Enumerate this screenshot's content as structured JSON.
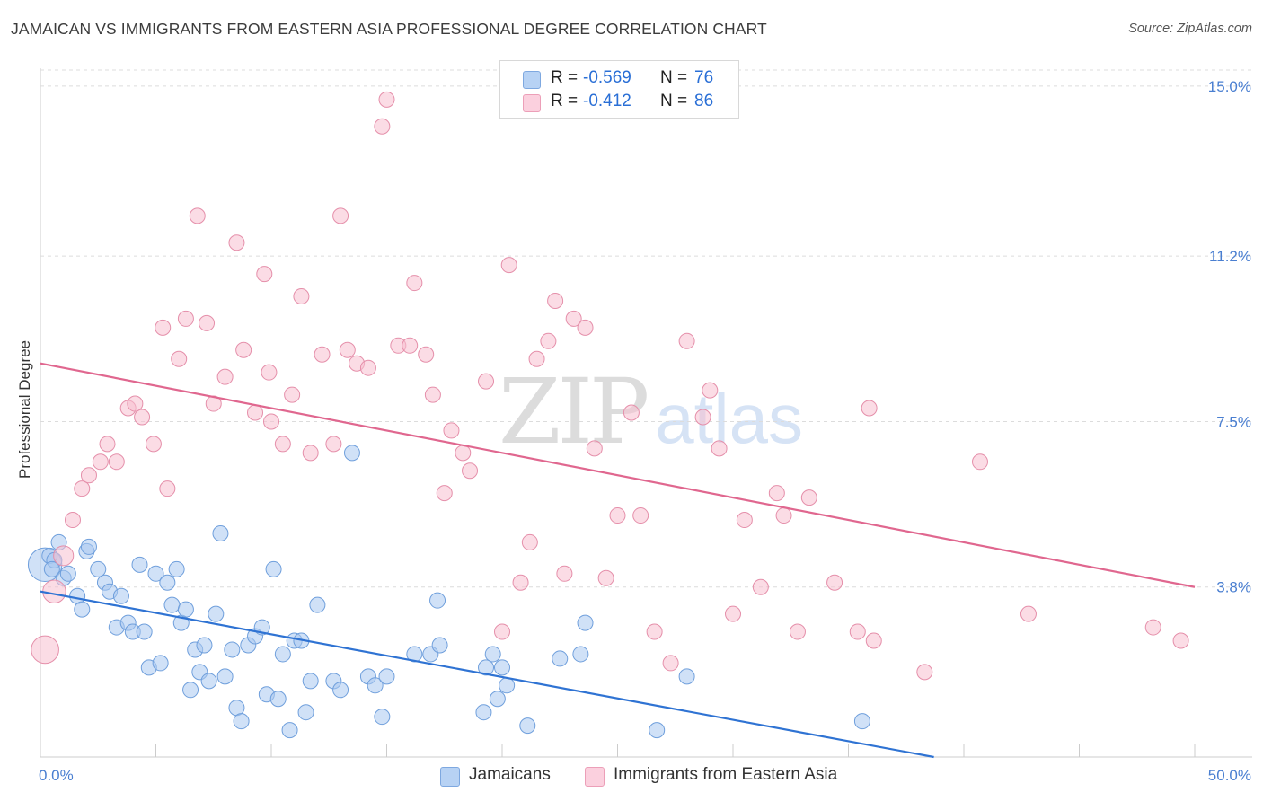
{
  "title": "JAMAICAN VS IMMIGRANTS FROM EASTERN ASIA PROFESSIONAL DEGREE CORRELATION CHART",
  "source": "Source: ZipAtlas.com",
  "watermark": {
    "zip": "ZIP",
    "atlas": "atlas"
  },
  "legend": {
    "rows": [
      {
        "r_label": "R =",
        "r_value": "-0.569",
        "n_label": "N =",
        "n_value": "76"
      },
      {
        "r_label": "R =",
        "r_value": "-0.412",
        "n_label": "N =",
        "n_value": "86"
      }
    ]
  },
  "bottom_legend": {
    "series1": "Jamaicans",
    "series2": "Immigrants from Eastern Asia"
  },
  "chart_data": {
    "type": "scatter",
    "title": "JAMAICAN VS IMMIGRANTS FROM EASTERN ASIA PROFESSIONAL DEGREE CORRELATION CHART",
    "xlabel": "",
    "ylabel": "Professional Degree",
    "xlim": [
      0,
      50
    ],
    "ylim": [
      0,
      15.4
    ],
    "x_tick_labels": [
      "0.0%",
      "50.0%"
    ],
    "y_ticks": [
      3.8,
      7.5,
      11.2,
      15.0
    ],
    "y_tick_labels": [
      "3.8%",
      "7.5%",
      "11.2%",
      "15.0%"
    ],
    "grid": true,
    "legend_position": "top-center",
    "colors": {
      "blue_fill": "#a9c8f0",
      "blue_stroke": "#6f9fdc",
      "blue_line": "#2f73d3",
      "pink_fill": "#f7bfd0",
      "pink_stroke": "#e58faa",
      "pink_line": "#e0678f"
    },
    "series": [
      {
        "name": "Jamaicans",
        "trend": {
          "x": [
            0,
            38.7
          ],
          "y": [
            3.7,
            0
          ]
        },
        "points": [
          [
            0.2,
            4.3,
            2.2
          ],
          [
            0.4,
            4.5,
            1
          ],
          [
            0.6,
            4.4,
            1
          ],
          [
            0.8,
            4.8,
            1
          ],
          [
            1.0,
            4.0,
            1
          ],
          [
            1.2,
            4.1,
            1
          ],
          [
            1.6,
            3.6,
            1
          ],
          [
            1.8,
            3.3,
            1
          ],
          [
            2.0,
            4.6,
            1
          ],
          [
            2.1,
            4.7,
            1
          ],
          [
            2.5,
            4.2,
            1
          ],
          [
            2.8,
            3.9,
            1
          ],
          [
            3.0,
            3.7,
            1
          ],
          [
            3.3,
            2.9,
            1
          ],
          [
            3.5,
            3.6,
            1
          ],
          [
            3.8,
            3.0,
            1
          ],
          [
            4.0,
            2.8,
            1
          ],
          [
            4.3,
            4.3,
            1
          ],
          [
            4.5,
            2.8,
            1
          ],
          [
            4.7,
            2.0,
            1
          ],
          [
            5.0,
            4.1,
            1
          ],
          [
            5.2,
            2.1,
            1
          ],
          [
            5.5,
            3.9,
            1
          ],
          [
            5.7,
            3.4,
            1
          ],
          [
            5.9,
            4.2,
            1
          ],
          [
            6.1,
            3.0,
            1
          ],
          [
            6.3,
            3.3,
            1
          ],
          [
            6.5,
            1.5,
            1
          ],
          [
            6.7,
            2.4,
            1
          ],
          [
            6.9,
            1.9,
            1
          ],
          [
            7.1,
            2.5,
            1
          ],
          [
            7.3,
            1.7,
            1
          ],
          [
            7.6,
            3.2,
            1
          ],
          [
            7.8,
            5.0,
            1
          ],
          [
            8.0,
            1.8,
            1
          ],
          [
            8.3,
            2.4,
            1
          ],
          [
            8.5,
            1.1,
            1
          ],
          [
            8.7,
            0.8,
            1
          ],
          [
            9.0,
            2.5,
            1
          ],
          [
            9.3,
            2.7,
            1
          ],
          [
            9.6,
            2.9,
            1
          ],
          [
            9.8,
            1.4,
            1
          ],
          [
            10.1,
            4.2,
            1
          ],
          [
            10.3,
            1.3,
            1
          ],
          [
            10.5,
            2.3,
            1
          ],
          [
            10.8,
            0.6,
            1
          ],
          [
            11.0,
            2.6,
            1
          ],
          [
            11.3,
            2.6,
            1
          ],
          [
            11.5,
            1.0,
            1
          ],
          [
            11.7,
            1.7,
            1
          ],
          [
            12.0,
            3.4,
            1
          ],
          [
            12.7,
            1.7,
            1
          ],
          [
            13.0,
            1.5,
            1
          ],
          [
            13.5,
            6.8,
            1
          ],
          [
            14.2,
            1.8,
            1
          ],
          [
            14.5,
            1.6,
            1
          ],
          [
            14.8,
            0.9,
            1
          ],
          [
            15.0,
            1.8,
            1
          ],
          [
            16.2,
            2.3,
            1
          ],
          [
            16.9,
            2.3,
            1
          ],
          [
            17.2,
            3.5,
            1
          ],
          [
            17.3,
            2.5,
            1
          ],
          [
            19.2,
            1.0,
            1
          ],
          [
            19.3,
            2.0,
            1
          ],
          [
            19.6,
            2.3,
            1
          ],
          [
            19.8,
            1.3,
            1
          ],
          [
            20.0,
            2.0,
            1
          ],
          [
            20.2,
            1.6,
            1
          ],
          [
            21.1,
            0.7,
            1
          ],
          [
            22.5,
            2.2,
            1
          ],
          [
            23.4,
            2.3,
            1
          ],
          [
            23.6,
            3.0,
            1
          ],
          [
            26.7,
            0.6,
            1
          ],
          [
            28.0,
            1.8,
            1
          ],
          [
            35.6,
            0.8,
            1
          ],
          [
            0.5,
            4.2,
            1
          ]
        ]
      },
      {
        "name": "Immigrants from Eastern Asia",
        "trend": {
          "x": [
            0,
            50
          ],
          "y": [
            8.8,
            3.8
          ]
        },
        "points": [
          [
            0.2,
            2.4,
            1.8
          ],
          [
            0.6,
            3.7,
            1.5
          ],
          [
            1.0,
            4.5,
            1.3
          ],
          [
            1.4,
            5.3,
            1
          ],
          [
            1.8,
            6.0,
            1
          ],
          [
            2.1,
            6.3,
            1
          ],
          [
            2.6,
            6.6,
            1
          ],
          [
            2.9,
            7.0,
            1
          ],
          [
            3.3,
            6.6,
            1
          ],
          [
            3.8,
            7.8,
            1
          ],
          [
            4.1,
            7.9,
            1
          ],
          [
            4.4,
            7.6,
            1
          ],
          [
            4.9,
            7.0,
            1
          ],
          [
            5.3,
            9.6,
            1
          ],
          [
            5.5,
            6.0,
            1
          ],
          [
            6.0,
            8.9,
            1
          ],
          [
            6.3,
            9.8,
            1
          ],
          [
            6.8,
            12.1,
            1
          ],
          [
            7.2,
            9.7,
            1
          ],
          [
            7.5,
            7.9,
            1
          ],
          [
            8.0,
            8.5,
            1
          ],
          [
            8.5,
            11.5,
            1
          ],
          [
            8.8,
            9.1,
            1
          ],
          [
            9.3,
            7.7,
            1
          ],
          [
            9.7,
            10.8,
            1
          ],
          [
            9.9,
            8.6,
            1
          ],
          [
            10.0,
            7.5,
            1
          ],
          [
            10.5,
            7.0,
            1
          ],
          [
            10.9,
            8.1,
            1
          ],
          [
            11.3,
            10.3,
            1
          ],
          [
            11.7,
            6.8,
            1
          ],
          [
            12.2,
            9.0,
            1
          ],
          [
            12.7,
            7.0,
            1
          ],
          [
            13.0,
            12.1,
            1
          ],
          [
            13.3,
            9.1,
            1
          ],
          [
            13.7,
            8.8,
            1
          ],
          [
            14.2,
            8.7,
            1
          ],
          [
            14.8,
            14.1,
            1
          ],
          [
            15.0,
            14.7,
            1
          ],
          [
            15.5,
            9.2,
            1
          ],
          [
            16.0,
            9.2,
            1
          ],
          [
            16.2,
            10.6,
            1
          ],
          [
            16.7,
            9.0,
            1
          ],
          [
            17.0,
            8.1,
            1
          ],
          [
            17.5,
            5.9,
            1
          ],
          [
            17.8,
            7.3,
            1
          ],
          [
            18.3,
            6.8,
            1
          ],
          [
            18.6,
            6.4,
            1
          ],
          [
            19.3,
            8.4,
            1
          ],
          [
            20.0,
            2.8,
            1
          ],
          [
            20.3,
            11.0,
            1
          ],
          [
            20.8,
            3.9,
            1
          ],
          [
            21.2,
            4.8,
            1
          ],
          [
            21.5,
            8.9,
            1
          ],
          [
            22.0,
            9.3,
            1
          ],
          [
            22.3,
            10.2,
            1
          ],
          [
            22.7,
            4.1,
            1
          ],
          [
            23.1,
            9.8,
            1
          ],
          [
            23.6,
            9.6,
            1
          ],
          [
            24.0,
            6.9,
            1
          ],
          [
            24.5,
            4.0,
            1
          ],
          [
            25.0,
            5.4,
            1
          ],
          [
            25.6,
            7.7,
            1
          ],
          [
            26.0,
            5.4,
            1
          ],
          [
            26.6,
            2.8,
            1
          ],
          [
            27.3,
            2.1,
            1
          ],
          [
            28.0,
            9.3,
            1
          ],
          [
            28.7,
            7.6,
            1
          ],
          [
            29.0,
            8.2,
            1
          ],
          [
            29.4,
            6.9,
            1
          ],
          [
            30.0,
            3.2,
            1
          ],
          [
            30.5,
            5.3,
            1
          ],
          [
            31.2,
            3.8,
            1
          ],
          [
            31.9,
            5.9,
            1
          ],
          [
            32.2,
            5.4,
            1
          ],
          [
            32.8,
            2.8,
            1
          ],
          [
            33.3,
            5.8,
            1
          ],
          [
            35.4,
            2.8,
            1
          ],
          [
            35.9,
            7.8,
            1
          ],
          [
            34.4,
            3.9,
            1
          ],
          [
            36.1,
            2.6,
            1
          ],
          [
            38.3,
            1.9,
            1
          ],
          [
            40.7,
            6.6,
            1
          ],
          [
            42.8,
            3.2,
            1
          ],
          [
            48.2,
            2.9,
            1
          ],
          [
            49.4,
            2.6,
            1
          ]
        ]
      }
    ]
  }
}
